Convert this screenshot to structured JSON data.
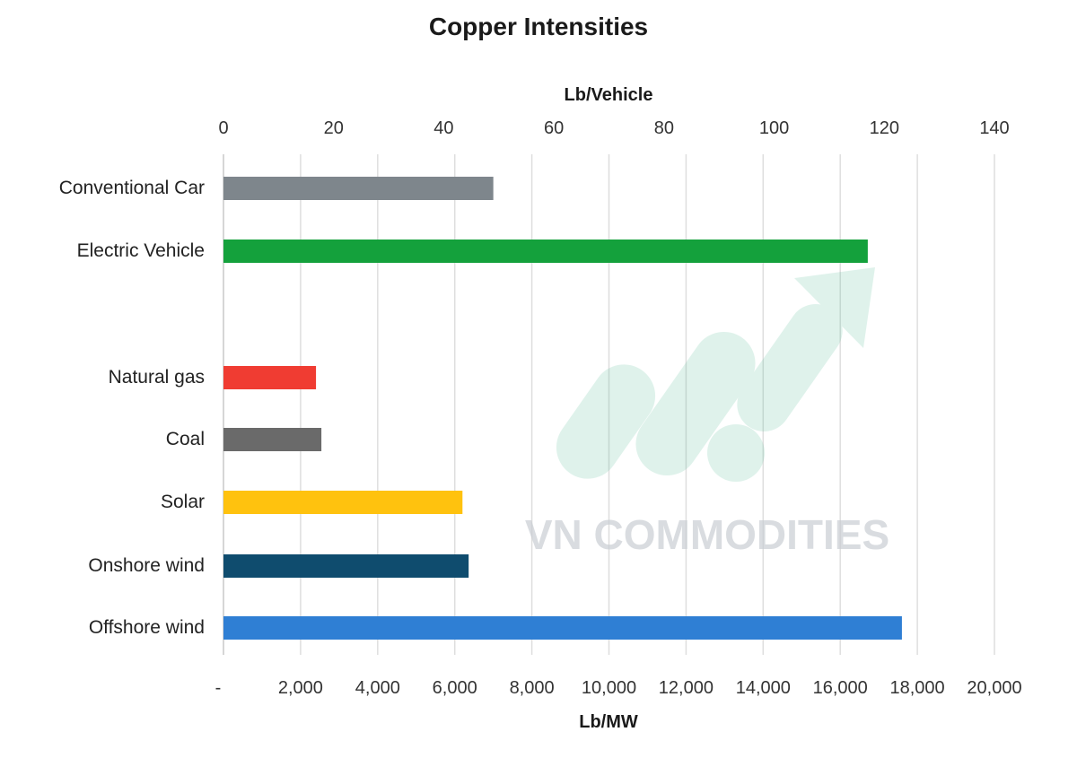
{
  "chart_data": {
    "type": "bar",
    "title": "Copper Intensities",
    "orientation": "horizontal",
    "top_axis": {
      "label": "Lb/Vehicle",
      "ticks": [
        "0",
        "20",
        "40",
        "60",
        "80",
        "100",
        "120",
        "140"
      ],
      "range": [
        0,
        140
      ]
    },
    "bottom_axis": {
      "label": "Lb/MW",
      "ticks": [
        "-",
        "2,000",
        "4,000",
        "6,000",
        "8,000",
        "10,000",
        "12,000",
        "14,000",
        "16,000",
        "18,000",
        "20,000"
      ],
      "range": [
        0,
        20000
      ]
    },
    "grid": "vertical",
    "groups": [
      {
        "axis": "top",
        "unit": "Lb/Vehicle",
        "bars": [
          {
            "category": "Conventional Car",
            "value": 49,
            "color": "#7e868c"
          },
          {
            "category": "Electric Vehicle",
            "value": 117,
            "color": "#14a13c"
          }
        ]
      },
      {
        "axis": "bottom",
        "unit": "Lb/MW",
        "bars": [
          {
            "category": "Natural gas",
            "value": 2400,
            "color": "#f03c32"
          },
          {
            "category": "Coal",
            "value": 2540,
            "color": "#6a6a6a"
          },
          {
            "category": "Solar",
            "value": 6200,
            "color": "#ffc20e"
          },
          {
            "category": "Onshore wind",
            "value": 6360,
            "color": "#0f4c6e"
          },
          {
            "category": "Offshore wind",
            "value": 17600,
            "color": "#2f7fd4"
          }
        ]
      }
    ]
  },
  "watermark": {
    "text": "VN COMMODITIES",
    "icon": "rising-arrow-logo-icon"
  }
}
